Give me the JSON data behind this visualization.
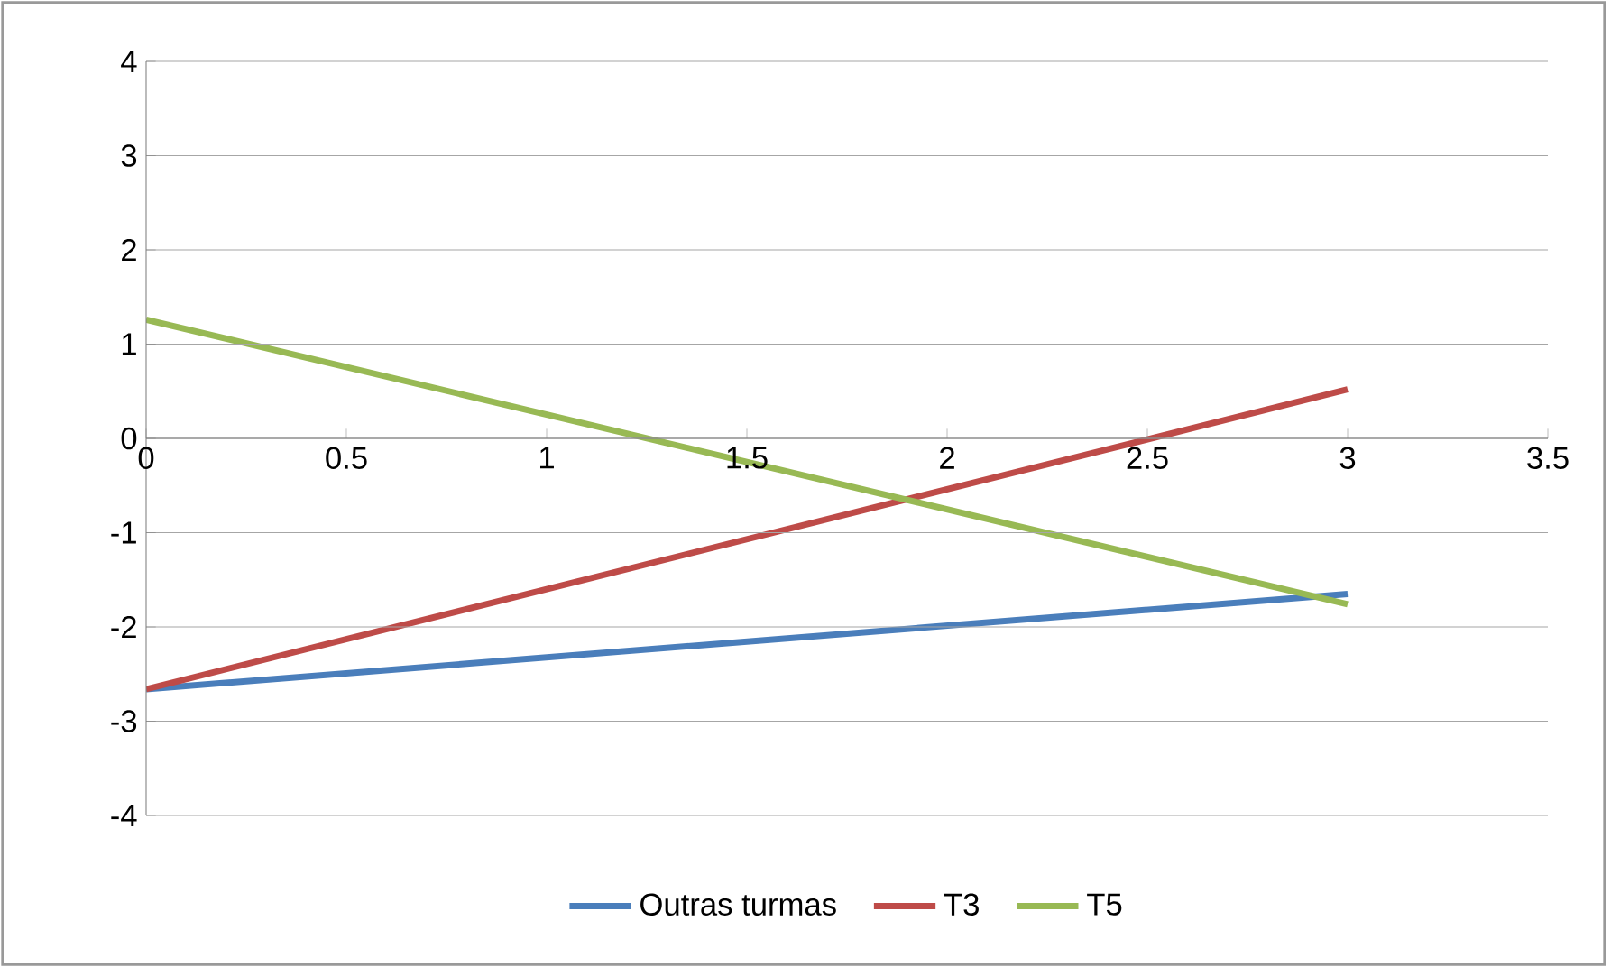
{
  "chart_data": {
    "type": "line",
    "x": [
      0,
      3
    ],
    "series": [
      {
        "name": "Outras turmas",
        "color": "#4a7ebb",
        "values": [
          -2.66,
          -1.65
        ]
      },
      {
        "name": "T3",
        "color": "#be4b48",
        "values": [
          -2.66,
          0.52
        ]
      },
      {
        "name": "T5",
        "color": "#98b954",
        "values": [
          1.26,
          -1.76
        ]
      }
    ],
    "xlim": [
      0,
      3.5
    ],
    "xticks": [
      0,
      0.5,
      1,
      1.5,
      2,
      2.5,
      3,
      3.5
    ],
    "ylim": [
      -4,
      4
    ],
    "yticks": [
      -4,
      -3,
      -2,
      -1,
      0,
      1,
      2,
      3,
      4
    ],
    "grid": "y",
    "legend": "bottom",
    "marker": "none",
    "line_style": "solid"
  }
}
